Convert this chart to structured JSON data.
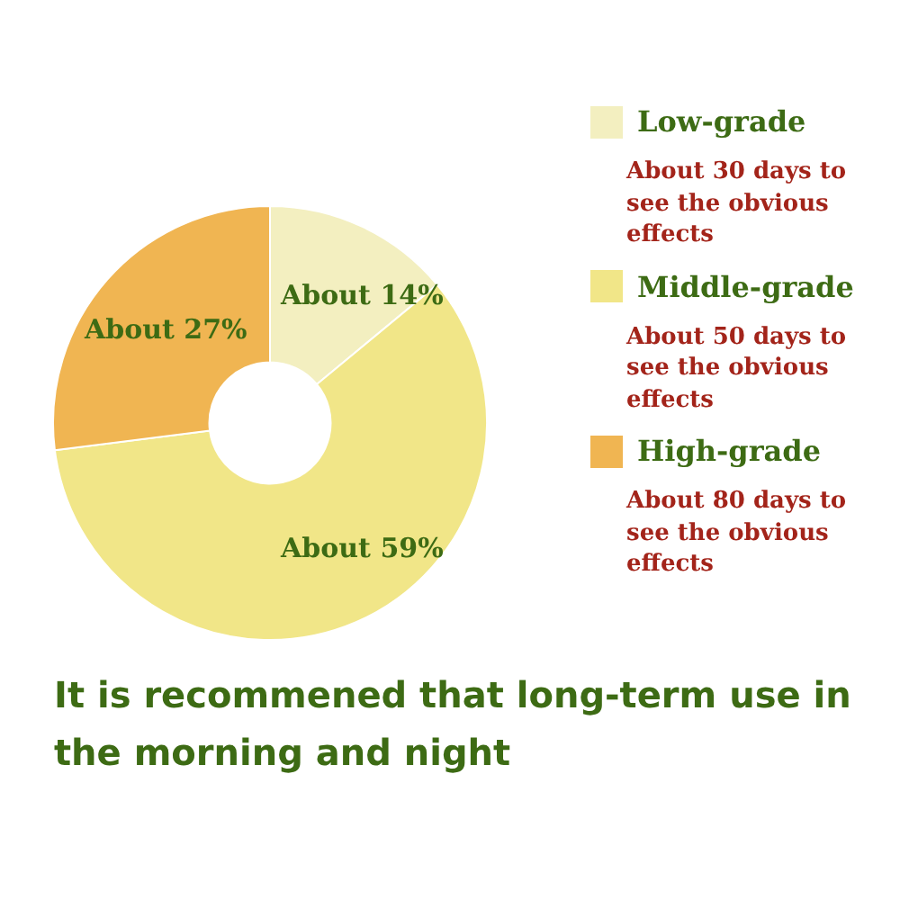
{
  "chart_data": {
    "type": "donut",
    "categories": [
      "Low-grade",
      "Middle-grade",
      "High-grade"
    ],
    "values": [
      14,
      59,
      27
    ],
    "colors": [
      "#f3efc0",
      "#f1e688",
      "#f0b552"
    ],
    "value_labels": [
      "About 14%",
      "About 59%",
      "About 27%"
    ],
    "legend": "right",
    "annotations": [
      "About 30 days to see the obvious effects",
      "About 50 days to see the obvious effects",
      "About 80 days to see the obvious effects",
      "It is recommened that long-term use in the morning and night"
    ]
  }
}
